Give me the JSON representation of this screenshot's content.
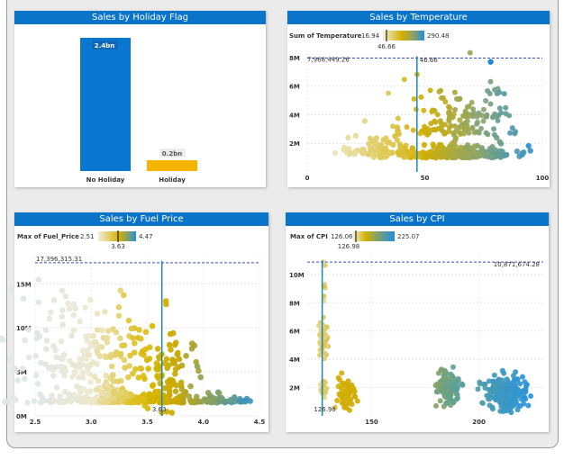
{
  "cards": {
    "holiday": {
      "title": "Sales by Holiday Flag",
      "chart_data": {
        "type": "bar",
        "categories": [
          "No Holiday",
          "Holiday"
        ],
        "values": [
          2.4,
          0.2
        ],
        "labels": [
          "2.4bn",
          "0.2bn"
        ],
        "colors": [
          "#0a78d0",
          "#f4b400"
        ]
      }
    },
    "temperature": {
      "title": "Sales by Temperature",
      "legend": {
        "title": "Sum of Temperature",
        "min": "16.94",
        "max": "290.48",
        "marker": "46.66"
      },
      "ref_label": "7,968,449.26",
      "median_label": "46.66",
      "chart_data": {
        "type": "scatter",
        "xlim": [
          0,
          100
        ],
        "ylim": [
          0,
          8500000
        ],
        "x_ticks": [
          "0",
          "50",
          "100"
        ],
        "y_ticks": [
          "2M",
          "4M",
          "6M",
          "8M"
        ],
        "ref_line_y": 7968449.26,
        "median_x": 46.66
      }
    },
    "fuel": {
      "title": "Sales by Fuel Price",
      "legend": {
        "title": "Max of Fuel_Price",
        "min": "2.51",
        "max": "4.47",
        "marker": "3.63"
      },
      "ref_label": "17,396,315.31",
      "median_label": "3.63",
      "chart_data": {
        "type": "scatter",
        "xlim": [
          2.5,
          4.5
        ],
        "ylim": [
          0,
          18000000
        ],
        "x_ticks": [
          "2.5",
          "3.0",
          "3.5",
          "4.0",
          "4.5"
        ],
        "y_ticks": [
          "0M",
          "5M",
          "10M",
          "15M"
        ],
        "ref_line_y": 17396315.31,
        "median_x": 3.63
      }
    },
    "cpi": {
      "title": "Sales by CPI",
      "legend": {
        "title": "Max of CPI",
        "min": "126.06",
        "max": "225.07",
        "marker": "126.98"
      },
      "ref_label": "10,871,674.28",
      "median_label": "126.98",
      "chart_data": {
        "type": "scatter",
        "xlim": [
          120,
          230
        ],
        "ylim": [
          0,
          11200000
        ],
        "x_ticks": [
          "150",
          "200"
        ],
        "y_ticks": [
          "2M",
          "4M",
          "6M",
          "8M",
          "10M"
        ],
        "ref_line_y": 10871674.28,
        "median_x": 126.98
      }
    }
  }
}
